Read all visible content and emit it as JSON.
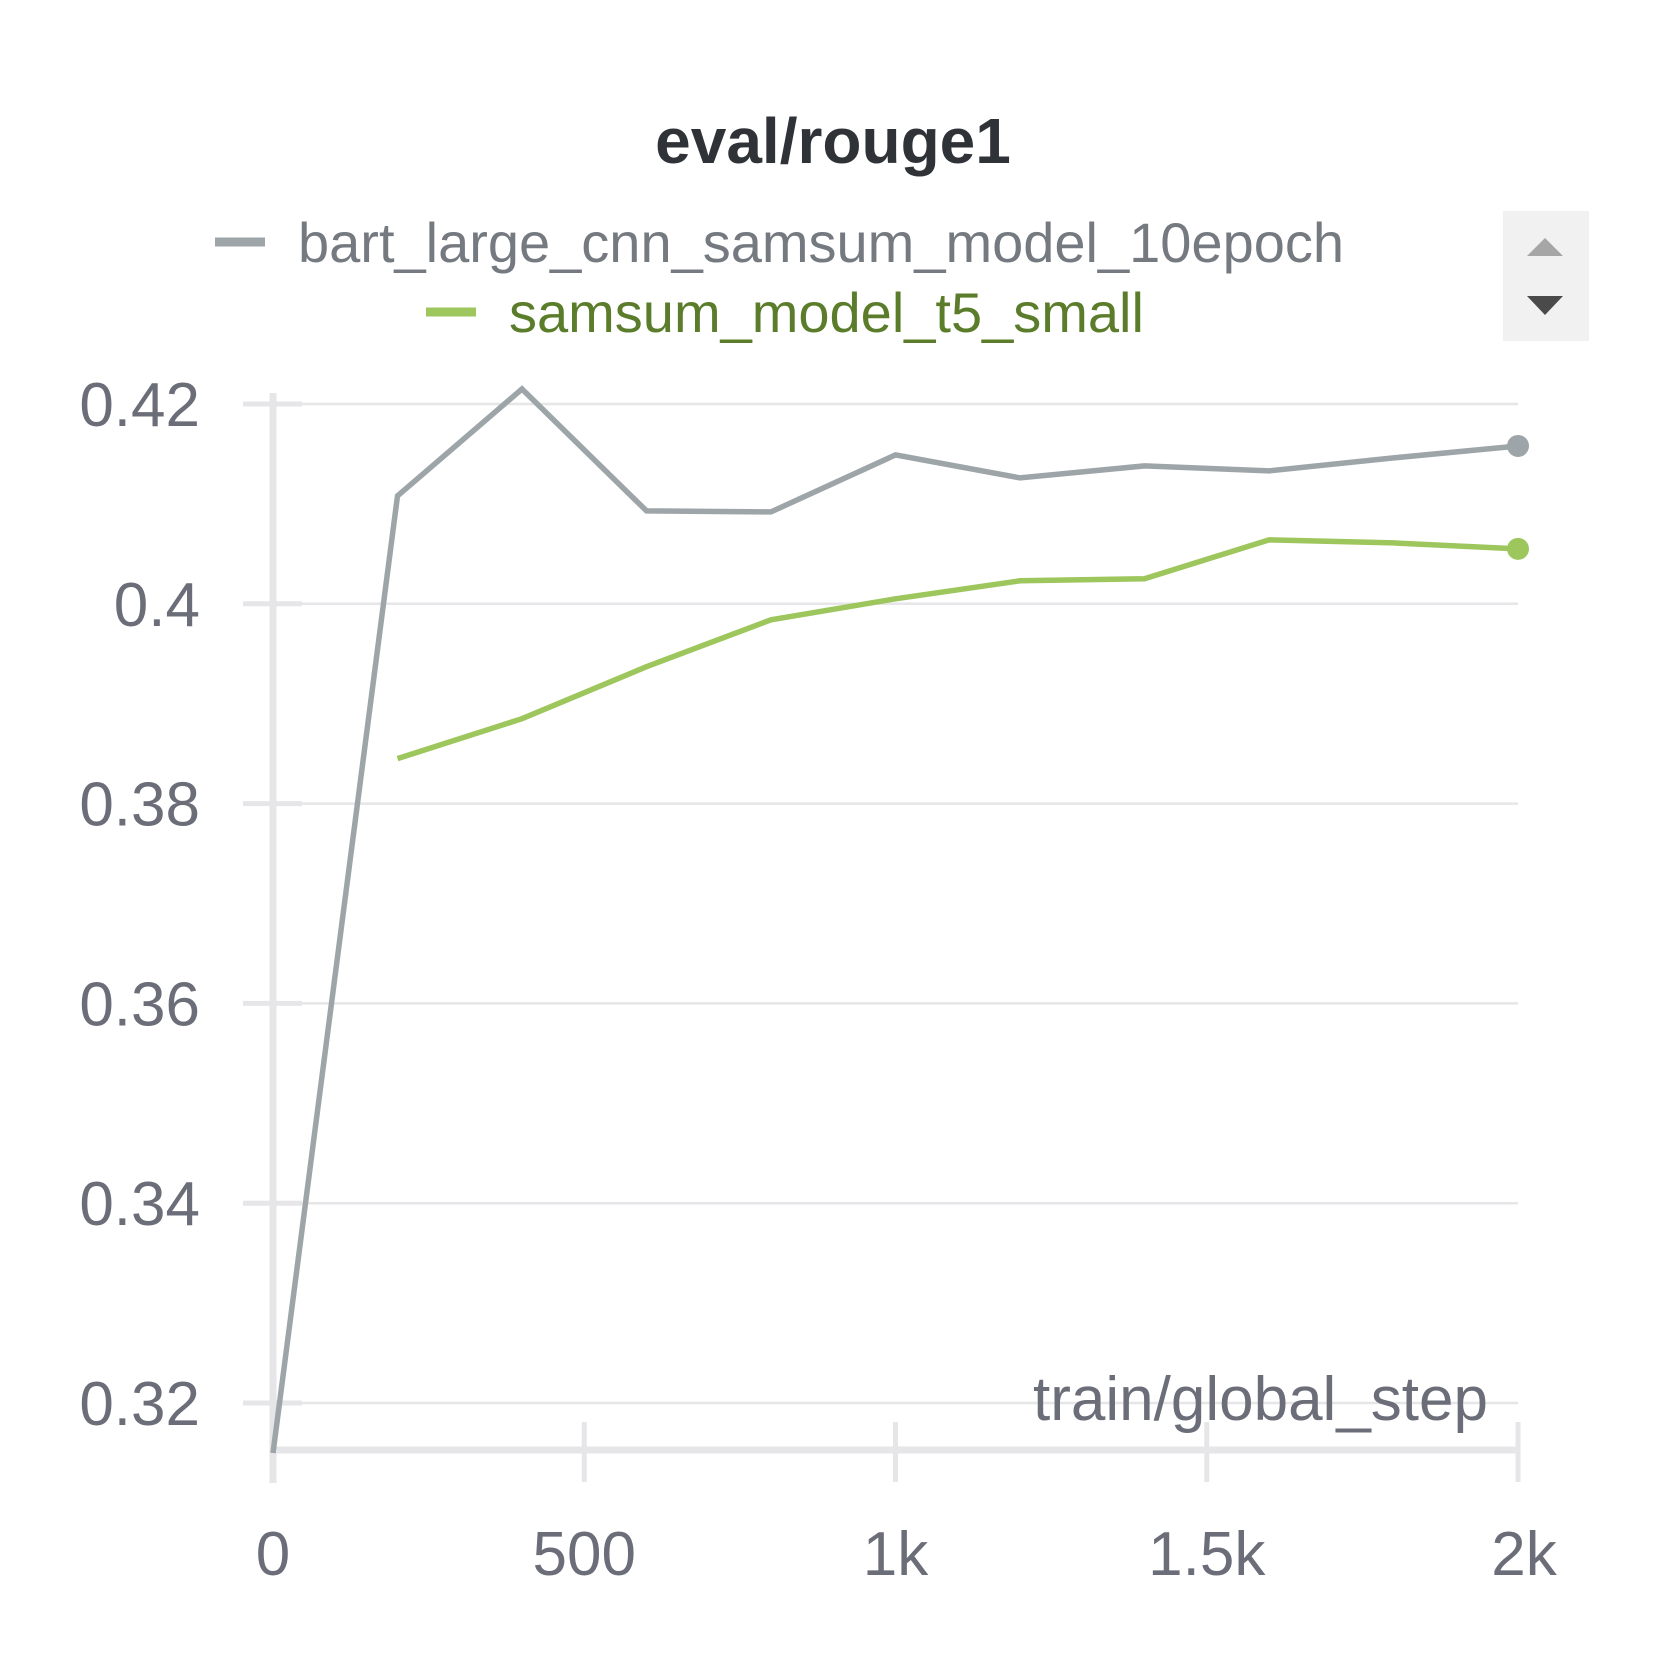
{
  "chart_data": {
    "type": "line",
    "title": "eval/rouge1",
    "xlabel": "train/global_step",
    "ylabel": "",
    "xlim": [
      0,
      2000
    ],
    "ylim": [
      0.315,
      0.42
    ],
    "x_ticks": [
      0,
      500,
      1000,
      1500,
      2000
    ],
    "x_tick_labels": [
      "0",
      "500",
      "1k",
      "1.5k",
      "2k"
    ],
    "y_ticks": [
      0.32,
      0.34,
      0.36,
      0.38,
      0.4,
      0.42
    ],
    "y_tick_labels": [
      "0.32",
      "0.34",
      "0.36",
      "0.38",
      "0.4",
      "0.42"
    ],
    "grid": true,
    "legend_position": "top",
    "series": [
      {
        "name": "bart_large_cnn_samsum_model_10epoch",
        "color": "#9ea5a9",
        "label_color": "#747a80",
        "x": [
          0,
          200,
          400,
          600,
          800,
          1000,
          1200,
          1400,
          1600,
          1800,
          2000
        ],
        "y": [
          0.315,
          0.4108,
          0.4215,
          0.4093,
          0.4092,
          0.4149,
          0.4126,
          0.4138,
          0.4133,
          0.4146,
          0.4158
        ]
      },
      {
        "name": "samsum_model_t5_small",
        "color": "#9dc65d",
        "label_color": "#5b7d2b",
        "x": [
          200,
          400,
          600,
          800,
          1000,
          1200,
          1400,
          1600,
          1800,
          2000
        ],
        "y": [
          0.3845,
          0.3885,
          0.3937,
          0.3984,
          0.4005,
          0.4023,
          0.4025,
          0.4064,
          0.4061,
          0.4055
        ]
      }
    ]
  },
  "legend_scroll": {
    "up_icon": "triangle-up-icon",
    "down_icon": "triangle-down-icon"
  }
}
